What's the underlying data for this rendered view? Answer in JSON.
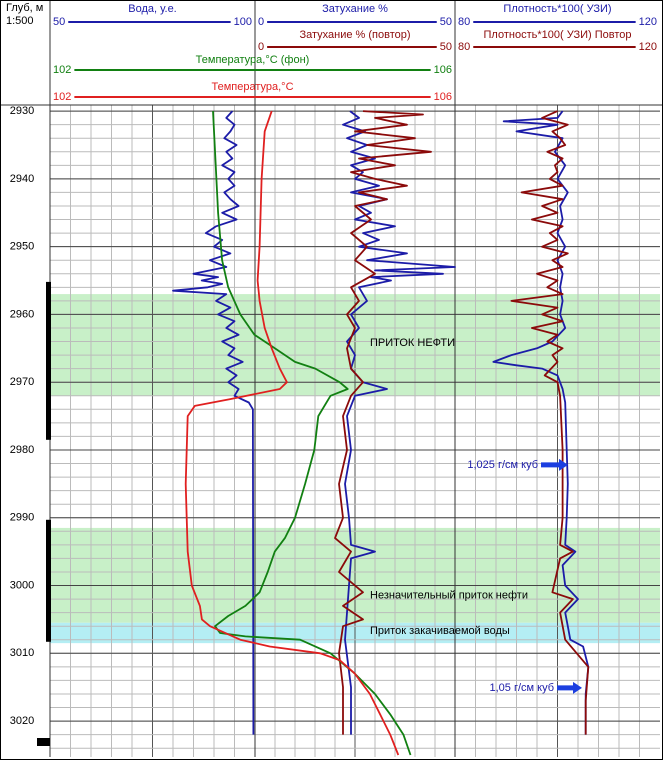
{
  "chart_data": {
    "type": "well_log",
    "depth_label": "Глуб, м",
    "scale_label": "1:500",
    "ylim": [
      2929.1,
      3025.3
    ],
    "yticks": [
      2930,
      2940,
      2950,
      2960,
      2970,
      2980,
      2990,
      3000,
      3010,
      3020
    ],
    "yticks_minor": [
      2930,
      2932,
      2934,
      2936,
      2938,
      2940,
      2942,
      2944,
      2946,
      2948,
      2950,
      2952,
      2954,
      2956,
      2958,
      2960,
      2962,
      2964,
      2966,
      2968,
      2970,
      2972,
      2974,
      2976,
      2978,
      2980,
      2982,
      2984,
      2986,
      2988,
      2990,
      2992,
      2994,
      2996,
      2998,
      3000,
      3002,
      3004,
      3006,
      3008,
      3010,
      3012,
      3014,
      3016,
      3018,
      3020,
      3022,
      3024
    ],
    "grid": true,
    "series": [
      {
        "name": "Вода, у.е.",
        "color": "#1c1ca8",
        "xlim": [
          50,
          100
        ],
        "depth": [
          2930,
          2931,
          2932,
          2933,
          2934,
          2935,
          2936,
          2937,
          2938,
          2939,
          2940,
          2941,
          2942,
          2943,
          2944,
          2945,
          2946,
          2947,
          2948,
          2949,
          2950,
          2951,
          2952,
          2953,
          2954,
          2954.5,
          2955,
          2955.5,
          2956,
          2956.5,
          2957,
          2958,
          2959,
          2960,
          2961,
          2962,
          2963,
          2964,
          2965,
          2966,
          2967,
          2968,
          2969,
          2970,
          2971,
          2972,
          2973,
          2974,
          2976,
          3022
        ],
        "values": [
          94.5,
          93,
          95,
          94,
          92.5,
          95.5,
          93,
          94.5,
          92,
          95,
          93.5,
          95,
          92.5,
          94,
          96,
          92,
          95.5,
          90.5,
          88,
          92,
          90,
          94,
          89,
          93,
          85,
          91,
          87,
          92,
          88.5,
          80,
          93,
          90.5,
          94,
          91,
          95,
          93,
          96,
          92,
          95,
          93.5,
          97,
          93,
          95.5,
          93.5,
          96,
          95,
          98.5,
          99.5,
          99.5,
          99.6
        ]
      },
      {
        "name": "Затухание %",
        "color": "#1c1ca8",
        "xlim": [
          0,
          50
        ],
        "depth": [
          2930,
          2931,
          2932,
          2933,
          2934,
          2935,
          2936,
          2937,
          2938,
          2939,
          2940,
          2941,
          2942,
          2943,
          2944,
          2945,
          2946,
          2947,
          2948,
          2949,
          2950,
          2951,
          2952,
          2953,
          2953.5,
          2954,
          2954.5,
          2955,
          2956,
          2958,
          2960,
          2962,
          2964,
          2966,
          2968,
          2970,
          2971,
          2972,
          2975,
          2980,
          2985,
          2990,
          2994,
          2995,
          2996,
          3000,
          3004,
          3008,
          3015,
          3022
        ],
        "values": [
          23.75,
          26,
          22,
          27.5,
          23,
          28,
          24,
          30,
          24,
          27,
          25,
          31,
          24,
          33,
          26,
          29,
          25,
          35,
          27,
          31,
          26,
          38,
          28,
          50,
          30,
          47,
          29,
          34,
          26,
          28,
          24,
          26,
          23,
          25,
          24,
          27,
          33,
          25,
          23,
          24,
          22.5,
          23.5,
          24,
          30,
          24,
          23.5,
          23,
          22.5,
          24,
          24
        ]
      },
      {
        "name": "Затухание % (повтор)",
        "color": "#8b0a0a",
        "xlim": [
          0,
          50
        ],
        "depth": [
          2930,
          2930.5,
          2931,
          2932,
          2933,
          2934,
          2935,
          2936,
          2937,
          2938,
          2939,
          2940,
          2941,
          2942,
          2943,
          2944,
          2946,
          2948,
          2950,
          2952,
          2954,
          2956,
          2958,
          2960,
          2962,
          2965,
          2968,
          2970,
          2972,
          2975,
          2980,
          2985,
          2990,
          2993,
          2995,
          2998,
          3001,
          3003,
          3005,
          3006,
          3010,
          3015,
          3022
        ],
        "values": [
          27,
          42,
          30,
          38,
          25,
          40,
          28,
          44,
          26,
          35,
          24,
          30,
          38,
          26,
          33,
          25,
          29,
          24,
          28,
          25,
          30,
          24,
          26,
          23,
          25,
          23,
          24,
          27,
          24,
          22,
          23,
          21,
          22,
          20,
          24,
          21,
          27,
          22,
          27,
          22,
          21,
          22,
          22
        ]
      },
      {
        "name": "Плотность*100( УЗИ)",
        "color": "#1c1ca8",
        "xlim": [
          80,
          120
        ],
        "depth": [
          2930,
          2931,
          2931.5,
          2932,
          2933,
          2934,
          2936,
          2938,
          2940,
          2942,
          2944,
          2946,
          2948,
          2950,
          2952,
          2954,
          2956,
          2958,
          2960,
          2962,
          2964,
          2965,
          2966,
          2967,
          2967.5,
          2968,
          2969,
          2971,
          2973,
          2980,
          2985,
          2990,
          2994,
          2995,
          2997,
          3000,
          3002,
          3004,
          3006,
          3008,
          3009,
          3012,
          3016,
          3022
        ],
        "values": [
          101,
          100,
          89.5,
          100,
          92,
          101,
          99.5,
          101.5,
          100,
          102,
          100.5,
          101,
          100,
          101.5,
          100,
          101,
          100.5,
          101,
          100.5,
          101.5,
          99,
          96,
          91,
          87.5,
          92,
          97,
          100,
          101,
          101.5,
          101.8,
          102,
          101.8,
          101.5,
          103.5,
          101,
          101.5,
          104,
          101.5,
          102,
          102.5,
          105,
          106,
          105.5,
          105.5
        ]
      },
      {
        "name": "Плотность*100( УЗИ) Повтор",
        "color": "#8b0a0a",
        "xlim": [
          80,
          120
        ],
        "depth": [
          2930,
          2931,
          2932,
          2933,
          2934,
          2935,
          2936,
          2937,
          2938,
          2939,
          2940,
          2941,
          2942,
          2943,
          2944,
          2945,
          2946,
          2947,
          2948,
          2949,
          2950,
          2951,
          2952,
          2953,
          2954,
          2955,
          2956,
          2957,
          2958,
          2959,
          2960,
          2961,
          2962,
          2963,
          2964,
          2965,
          2966,
          2967,
          2969,
          2970,
          2972,
          2980,
          2990,
          2994,
          2995,
          2996,
          3001,
          3002,
          3004,
          3008,
          3012,
          3017,
          3022
        ],
        "values": [
          100,
          97,
          102,
          99,
          100.5,
          101.5,
          98,
          101,
          99.5,
          100,
          98.5,
          101,
          93,
          101,
          97,
          100,
          95,
          101,
          98.5,
          100,
          97,
          102,
          99,
          101,
          96,
          100,
          98,
          101,
          91,
          100,
          97,
          101,
          95,
          100,
          98,
          101,
          99,
          100,
          97.5,
          100,
          100.5,
          101,
          101,
          100.5,
          103,
          100.5,
          99,
          103,
          100.5,
          101.5,
          106,
          105.5,
          105.5
        ]
      },
      {
        "name": "Температура,°С (фон)",
        "color": "#128012",
        "xlim": [
          102,
          106
        ],
        "depth": [
          2930,
          2945,
          2952,
          2956,
          2960,
          2963,
          2965,
          2967,
          2968,
          2970,
          2971,
          2972,
          2975,
          2980,
          2985,
          2990,
          2993,
          2995,
          2998,
          3001,
          3003,
          3004.5,
          3006,
          3007,
          3007.5,
          3008,
          3010,
          3013,
          3016,
          3019,
          3022,
          3025
        ],
        "values": [
          103.61,
          103.66,
          103.7,
          103.76,
          103.88,
          104.02,
          104.22,
          104.42,
          104.62,
          104.86,
          104.94,
          104.77,
          104.65,
          104.61,
          104.52,
          104.42,
          104.32,
          104.22,
          104.15,
          104.07,
          103.93,
          103.76,
          103.63,
          103.68,
          103.93,
          104.47,
          104.77,
          105.01,
          105.21,
          105.36,
          105.49,
          105.56
        ]
      },
      {
        "name": "Температура,°С",
        "color": "#e02020",
        "xlim": [
          102,
          106
        ],
        "depth": [
          2930,
          2933,
          2940,
          2950,
          2955,
          2958,
          2962,
          2965,
          2968,
          2970,
          2971,
          2972.5,
          2973.5,
          2975,
          2985,
          2995,
          3000,
          3003,
          3005,
          3006,
          3008,
          3009,
          3010,
          3011,
          3013,
          3016,
          3019,
          3022,
          3025
        ],
        "values": [
          104.19,
          104.12,
          104.09,
          104.07,
          104.05,
          104.07,
          104.12,
          104.19,
          104.27,
          104.34,
          104.27,
          103.78,
          103.43,
          103.36,
          103.34,
          103.36,
          103.4,
          103.48,
          103.5,
          103.58,
          103.88,
          104.17,
          104.67,
          104.86,
          105.01,
          105.16,
          105.26,
          105.36,
          105.44
        ]
      }
    ],
    "zones": [
      {
        "from": 2957,
        "to": 2972,
        "color": "#c8f0c8"
      },
      {
        "from": 2991.5,
        "to": 3005.5,
        "color": "#c8f0c8"
      },
      {
        "from": 3005.5,
        "to": 3008.5,
        "color": "#b4eef4"
      }
    ],
    "perforations": [
      [
        2955.2,
        2978.5
      ],
      [
        2990.3,
        3008.3
      ]
    ],
    "annotations": [
      {
        "text": "ПРИТОК НЕФТИ",
        "depth": 2964.2
      },
      {
        "text": "Незначительный приток нефти",
        "depth": 3001.5
      },
      {
        "text": "Приток закачиваемой воды",
        "depth": 3006.7
      }
    ],
    "markers": [
      {
        "text": "1,025 г/см куб",
        "depth": 2982.2
      },
      {
        "text": "1,05 г/см куб",
        "depth": 3015.1
      }
    ]
  }
}
